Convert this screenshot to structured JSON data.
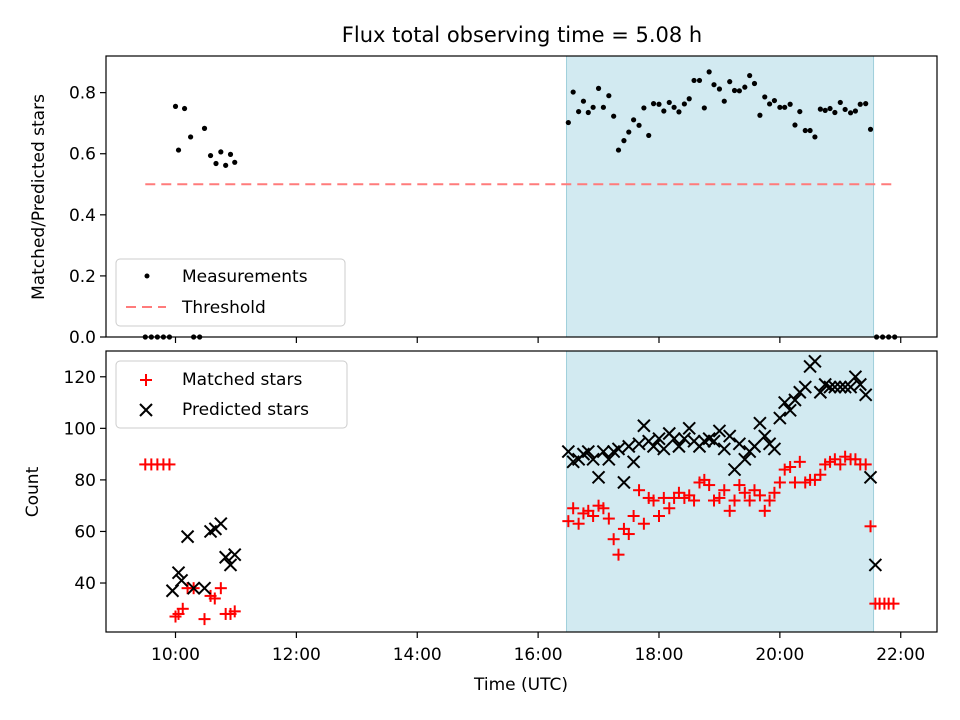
{
  "figure": {
    "title": "Flux total observing time = 5.08 h"
  },
  "chart_data": [
    {
      "type": "scatter",
      "panel": "top",
      "title": "Flux total observing time = 5.08 h",
      "xlabel": "",
      "ylabel": "Matched/Predicted stars",
      "xlim_hours": [
        8.85,
        22.6
      ],
      "ylim": [
        0,
        0.92
      ],
      "yticks": [
        0.0,
        0.2,
        0.4,
        0.6,
        0.8
      ],
      "ytick_labels": [
        "0.0",
        "0.2",
        "0.4",
        "0.6",
        "0.8"
      ],
      "xticks_hours": [
        10,
        12,
        14,
        16,
        18,
        20,
        22
      ],
      "grid": false,
      "legend_position": "lower-left",
      "shaded_span_hours": [
        16.47,
        21.55
      ],
      "shaded_color": "#add8e6",
      "series": [
        {
          "name": "Measurements",
          "marker": "dot",
          "color": "#000000",
          "x_hours": [
            9.5,
            9.6,
            9.7,
            9.8,
            9.9,
            10.3,
            10.4,
            21.6,
            21.7,
            21.8,
            21.9,
            10.0,
            10.05,
            10.15,
            10.25,
            10.48,
            10.58,
            10.67,
            10.75,
            10.83,
            10.91,
            10.98,
            16.5,
            16.58,
            16.67,
            16.75,
            16.83,
            16.91,
            17.0,
            17.08,
            17.17,
            17.25,
            17.33,
            17.42,
            17.5,
            17.58,
            17.67,
            17.75,
            17.83,
            17.91,
            18.0,
            18.08,
            18.17,
            18.25,
            18.33,
            18.42,
            18.5,
            18.58,
            18.67,
            18.75,
            18.83,
            18.91,
            19.0,
            19.08,
            19.17,
            19.25,
            19.33,
            19.42,
            19.5,
            19.58,
            19.67,
            19.75,
            19.83,
            19.91,
            20.0,
            20.08,
            20.17,
            20.25,
            20.33,
            20.42,
            20.5,
            20.58,
            20.67,
            20.75,
            20.83,
            20.91,
            21.0,
            21.08,
            21.17,
            21.25,
            21.33,
            21.42,
            21.5
          ],
          "y": [
            0,
            0,
            0,
            0,
            0,
            0,
            0,
            0,
            0,
            0,
            0,
            0.755,
            0.612,
            0.748,
            0.655,
            0.683,
            0.594,
            0.568,
            0.606,
            0.562,
            0.598,
            0.572,
            0.702,
            0.802,
            0.738,
            0.772,
            0.735,
            0.752,
            0.814,
            0.752,
            0.79,
            0.723,
            0.612,
            0.643,
            0.671,
            0.711,
            0.693,
            0.75,
            0.66,
            0.764,
            0.762,
            0.74,
            0.768,
            0.752,
            0.737,
            0.763,
            0.78,
            0.84,
            0.84,
            0.75,
            0.868,
            0.826,
            0.812,
            0.772,
            0.836,
            0.807,
            0.806,
            0.818,
            0.856,
            0.83,
            0.726,
            0.786,
            0.763,
            0.774,
            0.752,
            0.752,
            0.762,
            0.694,
            0.738,
            0.676,
            0.676,
            0.655,
            0.746,
            0.742,
            0.748,
            0.735,
            0.768,
            0.745,
            0.734,
            0.74,
            0.762,
            0.764,
            0.68
          ]
        },
        {
          "name": "Threshold",
          "marker": "dashed-line",
          "color": "#ff7b7b",
          "x_hours": [
            9.5,
            21.9
          ],
          "y": [
            0.5,
            0.5
          ]
        }
      ]
    },
    {
      "type": "scatter",
      "panel": "bottom",
      "xlabel": "Time (UTC)",
      "ylabel": "Count",
      "xlim_hours": [
        8.85,
        22.6
      ],
      "ylim": [
        21,
        130
      ],
      "yticks": [
        40,
        60,
        80,
        100,
        120
      ],
      "ytick_labels": [
        "40",
        "60",
        "80",
        "100",
        "120"
      ],
      "xticks_hours": [
        10,
        12,
        14,
        16,
        18,
        20,
        22
      ],
      "xtick_labels": [
        "10:00",
        "12:00",
        "14:00",
        "16:00",
        "18:00",
        "20:00",
        "22:00"
      ],
      "grid": false,
      "legend_position": "upper-left",
      "shaded_span_hours": [
        16.47,
        21.55
      ],
      "shaded_color": "#add8e6",
      "series": [
        {
          "name": "Matched stars",
          "marker": "plus",
          "color": "#ff0000",
          "x_hours": [
            9.5,
            9.6,
            9.7,
            9.8,
            9.9,
            10.0,
            10.05,
            10.12,
            10.2,
            10.3,
            10.48,
            10.58,
            10.65,
            10.75,
            10.83,
            10.91,
            10.98,
            16.5,
            16.58,
            16.67,
            16.75,
            16.83,
            16.91,
            17.0,
            17.08,
            17.17,
            17.25,
            17.33,
            17.42,
            17.5,
            17.58,
            17.67,
            17.75,
            17.83,
            17.91,
            18.0,
            18.08,
            18.17,
            18.25,
            18.33,
            18.42,
            18.5,
            18.58,
            18.67,
            18.75,
            18.83,
            18.91,
            19.0,
            19.08,
            19.17,
            19.25,
            19.33,
            19.42,
            19.5,
            19.58,
            19.67,
            19.75,
            19.83,
            19.91,
            20.0,
            20.08,
            20.17,
            20.25,
            20.33,
            20.42,
            20.5,
            20.58,
            20.67,
            20.75,
            20.83,
            20.91,
            21.0,
            21.08,
            21.17,
            21.25,
            21.33,
            21.42,
            21.5,
            21.58,
            21.65,
            21.73,
            21.8,
            21.88
          ],
          "y": [
            86,
            86,
            86,
            86,
            86,
            27,
            28,
            30,
            38,
            38,
            26,
            35,
            34,
            38,
            28,
            28,
            29,
            64,
            69,
            63,
            67,
            68,
            66,
            70,
            69,
            65,
            57,
            51,
            61,
            59,
            66,
            76,
            63,
            73,
            72,
            66,
            73,
            69,
            73,
            75,
            73,
            74,
            72,
            79,
            80,
            78,
            72,
            73,
            76,
            68,
            72,
            78,
            75,
            72,
            76,
            74,
            68,
            72,
            75,
            79,
            84,
            85,
            79,
            87,
            79,
            80,
            80,
            82,
            86,
            87,
            88,
            86,
            89,
            88,
            88,
            86,
            86,
            62,
            32,
            32,
            32,
            32,
            32
          ]
        },
        {
          "name": "Predicted stars",
          "marker": "x",
          "color": "#000000",
          "x_hours": [
            9.95,
            10.05,
            10.1,
            10.2,
            10.3,
            10.48,
            10.58,
            10.66,
            10.75,
            10.83,
            10.91,
            10.98,
            16.5,
            16.58,
            16.67,
            16.75,
            16.83,
            16.91,
            17.0,
            17.08,
            17.17,
            17.25,
            17.33,
            17.42,
            17.5,
            17.58,
            17.67,
            17.75,
            17.83,
            17.91,
            18.0,
            18.08,
            18.17,
            18.25,
            18.33,
            18.42,
            18.5,
            18.58,
            18.67,
            18.75,
            18.83,
            18.91,
            19.0,
            19.08,
            19.17,
            19.25,
            19.33,
            19.42,
            19.5,
            19.58,
            19.67,
            19.75,
            19.83,
            19.91,
            20.0,
            20.08,
            20.17,
            20.25,
            20.33,
            20.42,
            20.5,
            20.58,
            20.67,
            20.75,
            20.83,
            20.91,
            21.0,
            21.08,
            21.17,
            21.25,
            21.33,
            21.42,
            21.5,
            21.58
          ],
          "y": [
            37,
            44,
            41,
            58,
            38,
            38,
            60,
            61,
            63,
            50,
            47,
            51,
            91,
            87,
            88,
            90,
            91,
            88,
            81,
            91,
            88,
            91,
            92,
            79,
            93,
            87,
            94,
            101,
            95,
            93,
            96,
            92,
            98,
            96,
            93,
            96,
            100,
            95,
            93,
            95,
            96,
            95,
            99,
            92,
            97,
            84,
            94,
            88,
            91,
            93,
            102,
            97,
            94,
            92,
            104,
            110,
            107,
            111,
            114,
            116,
            124,
            126,
            114,
            117,
            116,
            116,
            116,
            116,
            116,
            120,
            117,
            113,
            81,
            47
          ]
        }
      ]
    }
  ]
}
